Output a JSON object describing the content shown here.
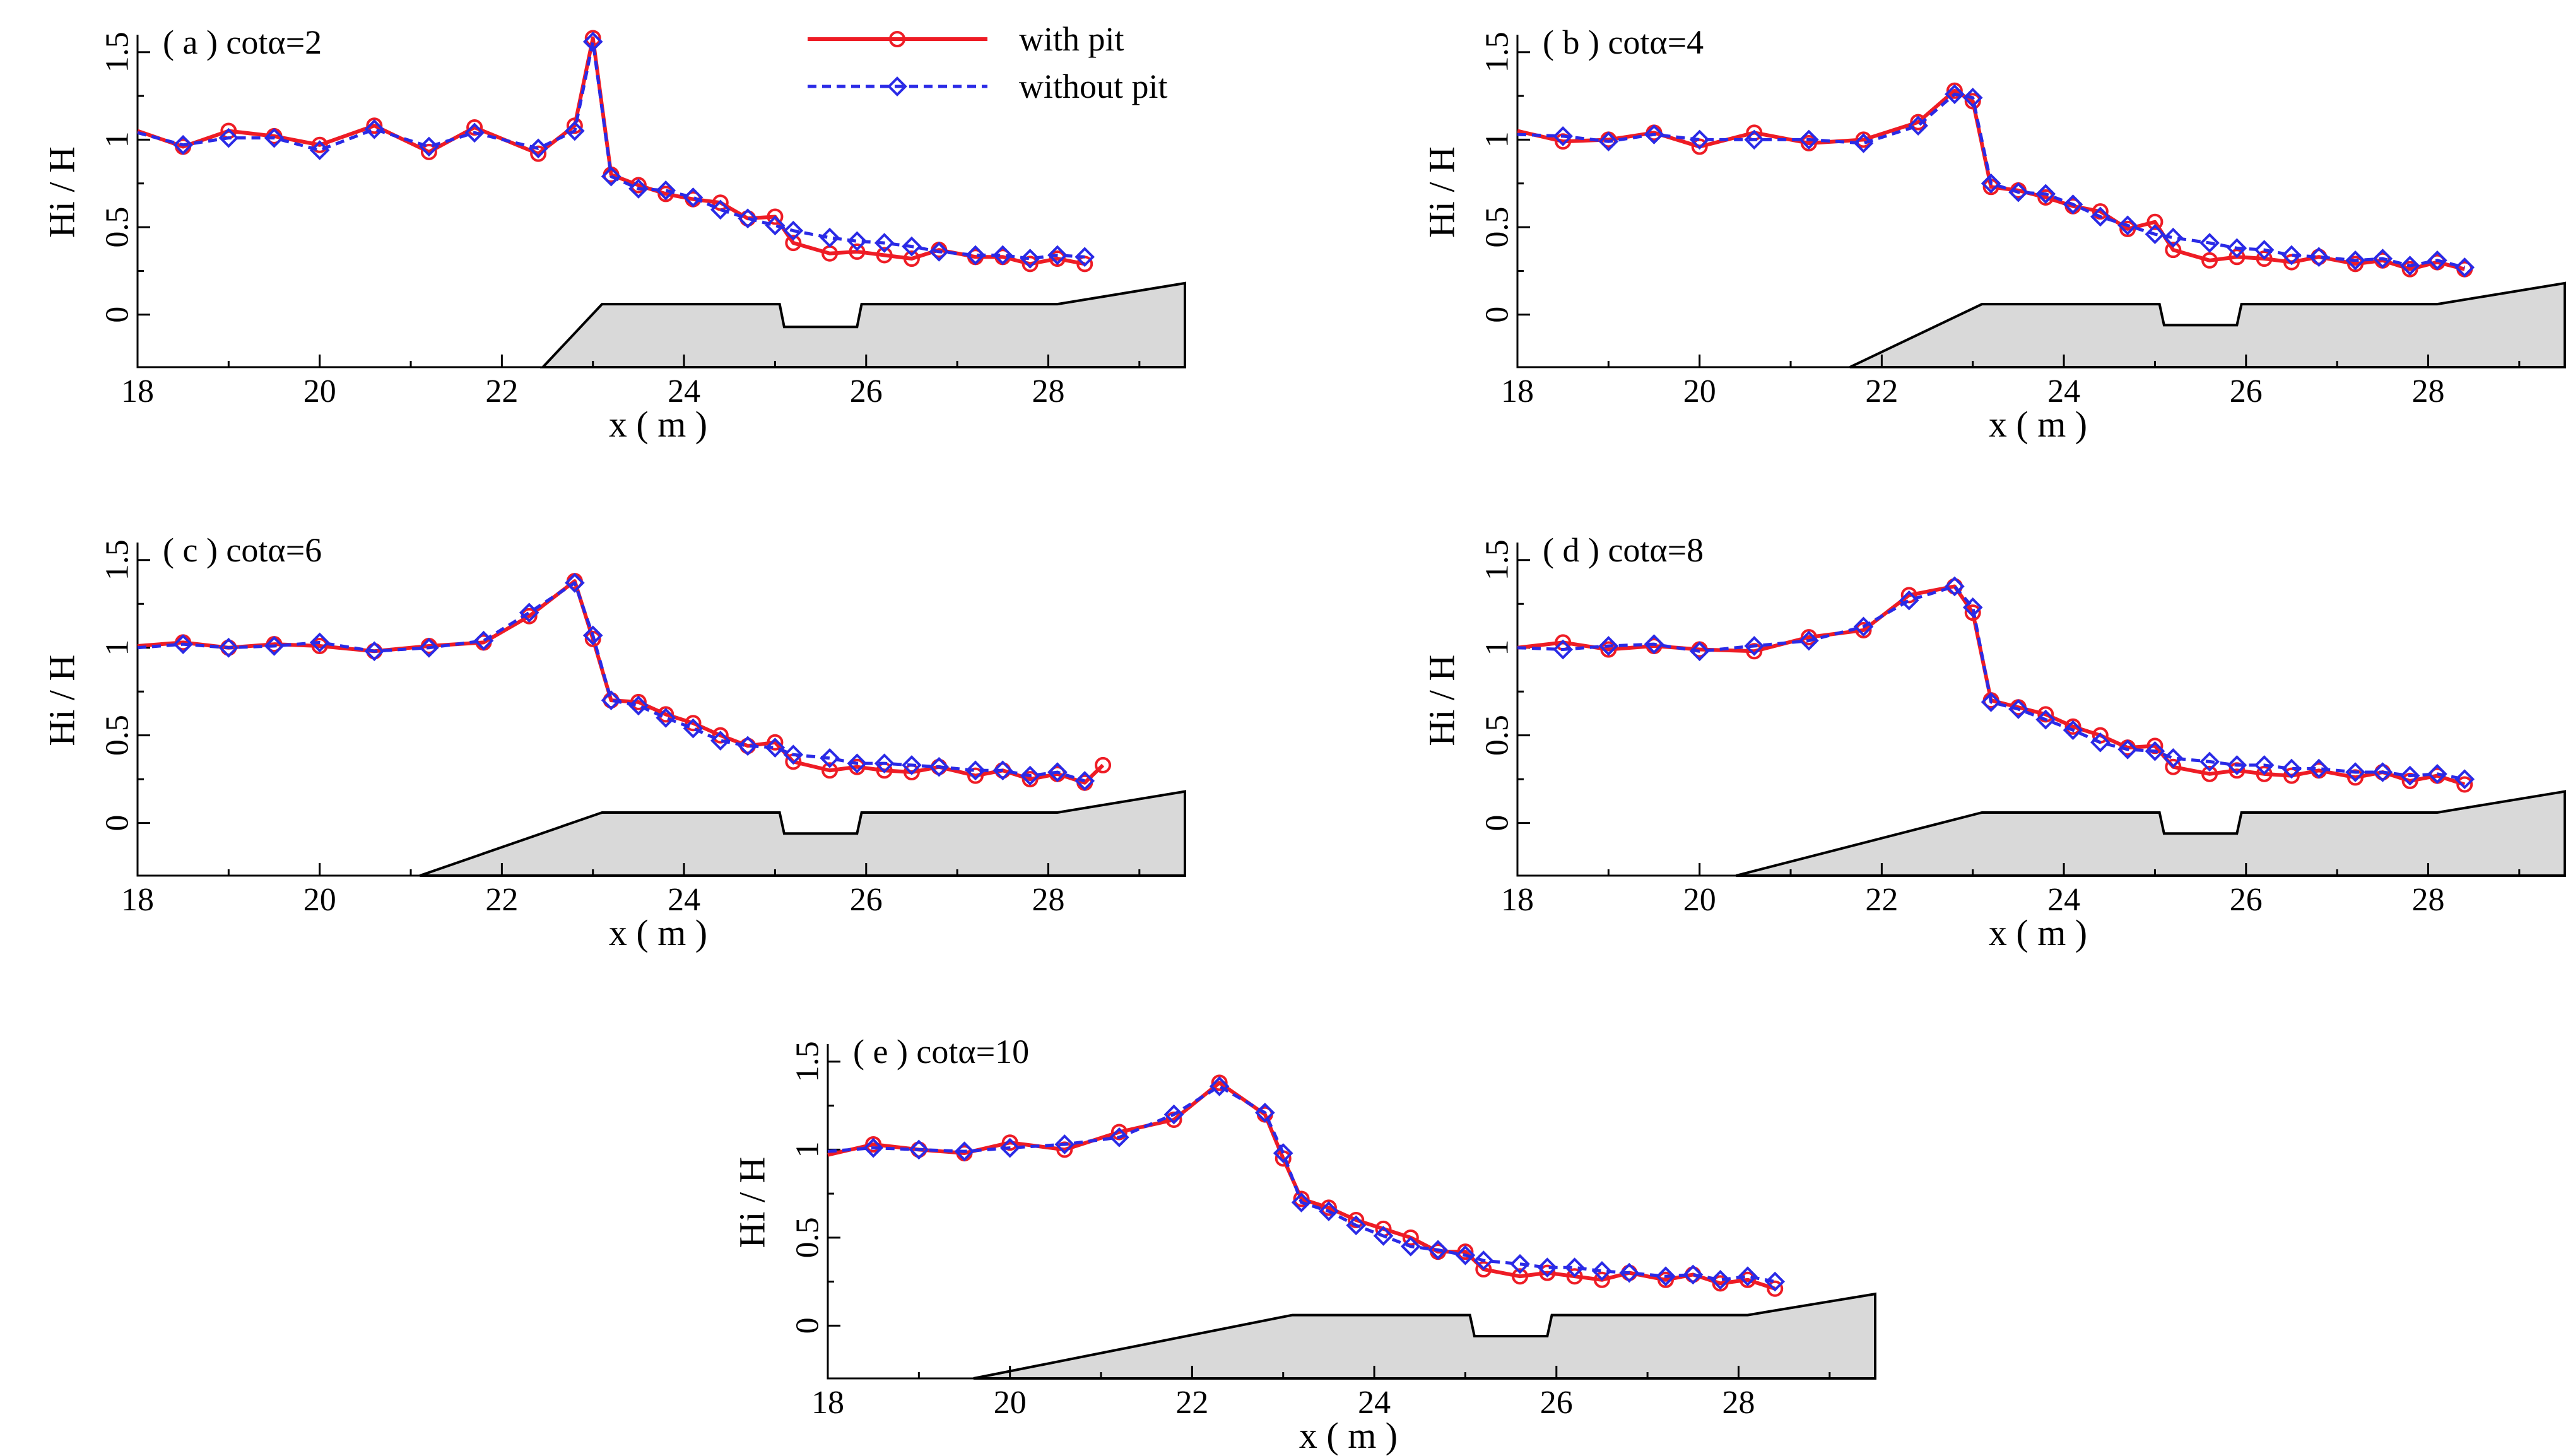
{
  "legend": {
    "with_pit": "with pit",
    "without_pit": "without pit",
    "placement": "top-center of panel (a)"
  },
  "colors": {
    "with_pit": "#ee1c25",
    "without_pit": "#2a2ae6",
    "bed_fill": "#d9d9d9"
  },
  "chart_data": [
    {
      "type": "line",
      "panel": "( a ) cotα=2",
      "xlabel": "x ( m )",
      "ylabel": "Hi / H",
      "xlim": [
        18,
        29.5
      ],
      "ylim": [
        -0.3,
        1.6
      ],
      "xticks": [
        "18",
        "20",
        "22",
        "24",
        "26",
        "28"
      ],
      "yticks": [
        "0",
        "0.5",
        "1",
        "1.5"
      ],
      "series": [
        {
          "name": "with pit",
          "marker": "circle",
          "x": [
            18,
            18.5,
            19,
            19.5,
            20,
            20.6,
            21.2,
            21.7,
            22.4,
            22.8,
            23.0,
            23.2,
            23.5,
            23.8,
            24.1,
            24.4,
            24.7,
            25.0,
            25.2,
            25.6,
            25.9,
            26.2,
            26.5,
            26.8,
            27.2,
            27.5,
            27.8,
            28.1,
            28.4
          ],
          "y": [
            1.05,
            0.96,
            1.05,
            1.02,
            0.97,
            1.08,
            0.93,
            1.07,
            0.92,
            1.08,
            1.58,
            0.8,
            0.74,
            0.69,
            0.66,
            0.64,
            0.55,
            0.56,
            0.41,
            0.35,
            0.36,
            0.34,
            0.32,
            0.37,
            0.33,
            0.33,
            0.29,
            0.32,
            0.29
          ]
        },
        {
          "name": "without pit",
          "marker": "diamond",
          "x": [
            18,
            18.5,
            19,
            19.5,
            20,
            20.6,
            21.2,
            21.7,
            22.4,
            22.8,
            23.0,
            23.2,
            23.5,
            23.8,
            24.1,
            24.4,
            24.7,
            25.0,
            25.2,
            25.6,
            25.9,
            26.2,
            26.5,
            26.8,
            27.2,
            27.5,
            27.8,
            28.1,
            28.4
          ],
          "y": [
            1.04,
            0.97,
            1.01,
            1.01,
            0.94,
            1.06,
            0.96,
            1.04,
            0.95,
            1.05,
            1.56,
            0.79,
            0.72,
            0.71,
            0.67,
            0.6,
            0.55,
            0.51,
            0.48,
            0.44,
            0.42,
            0.41,
            0.39,
            0.36,
            0.34,
            0.34,
            0.32,
            0.34,
            0.33
          ]
        }
      ],
      "bed": {
        "x": [
          22.45,
          23.1,
          25.05,
          25.1,
          25.9,
          25.95,
          28.1,
          29.5
        ],
        "y": [
          -0.3,
          0.06,
          0.06,
          -0.07,
          -0.07,
          0.06,
          0.06,
          0.18
        ]
      }
    },
    {
      "type": "line",
      "panel": "( b ) cotα=4",
      "xlabel": "x ( m )",
      "ylabel": "Hi / H",
      "xlim": [
        18,
        29.5
      ],
      "ylim": [
        -0.3,
        1.6
      ],
      "xticks": [
        "18",
        "20",
        "22",
        "24",
        "26",
        "28"
      ],
      "yticks": [
        "0",
        "0.5",
        "1",
        "1.5"
      ],
      "series": [
        {
          "name": "with pit",
          "marker": "circle",
          "x": [
            18,
            18.5,
            19,
            19.5,
            20,
            20.6,
            21.2,
            21.8,
            22.4,
            22.8,
            23.0,
            23.2,
            23.5,
            23.8,
            24.1,
            24.4,
            24.7,
            25.0,
            25.2,
            25.6,
            25.9,
            26.2,
            26.5,
            26.8,
            27.2,
            27.5,
            27.8,
            28.1,
            28.4
          ],
          "y": [
            1.05,
            0.99,
            1.0,
            1.04,
            0.96,
            1.04,
            0.98,
            1.0,
            1.1,
            1.28,
            1.22,
            0.73,
            0.71,
            0.67,
            0.62,
            0.59,
            0.49,
            0.53,
            0.37,
            0.31,
            0.33,
            0.32,
            0.3,
            0.33,
            0.29,
            0.31,
            0.26,
            0.3,
            0.26
          ]
        },
        {
          "name": "without pit",
          "marker": "diamond",
          "x": [
            18,
            18.5,
            19,
            19.5,
            20,
            20.6,
            21.2,
            21.8,
            22.4,
            22.8,
            23.0,
            23.2,
            23.5,
            23.8,
            24.1,
            24.4,
            24.7,
            25.0,
            25.2,
            25.6,
            25.9,
            26.2,
            26.5,
            26.8,
            27.2,
            27.5,
            27.8,
            28.1,
            28.4
          ],
          "y": [
            1.03,
            1.02,
            0.99,
            1.03,
            1.0,
            1.0,
            1.0,
            0.98,
            1.08,
            1.26,
            1.24,
            0.75,
            0.7,
            0.69,
            0.63,
            0.56,
            0.51,
            0.46,
            0.44,
            0.41,
            0.38,
            0.37,
            0.34,
            0.33,
            0.31,
            0.32,
            0.28,
            0.31,
            0.27
          ]
        }
      ],
      "bed": {
        "x": [
          21.65,
          23.1,
          25.05,
          25.1,
          25.9,
          25.95,
          28.1,
          29.5
        ],
        "y": [
          -0.3,
          0.06,
          0.06,
          -0.06,
          -0.06,
          0.06,
          0.06,
          0.18
        ]
      }
    },
    {
      "type": "line",
      "panel": "( c ) cotα=6",
      "xlabel": "x ( m )",
      "ylabel": "Hi / H",
      "xlim": [
        18,
        29.5
      ],
      "ylim": [
        -0.3,
        1.6
      ],
      "xticks": [
        "18",
        "20",
        "22",
        "24",
        "26",
        "28"
      ],
      "yticks": [
        "0",
        "0.5",
        "1",
        "1.5"
      ],
      "series": [
        {
          "name": "with pit",
          "marker": "circle",
          "x": [
            18,
            18.5,
            19,
            19.5,
            20,
            20.6,
            21.2,
            21.8,
            22.3,
            22.8,
            23.0,
            23.2,
            23.5,
            23.8,
            24.1,
            24.4,
            24.7,
            25.0,
            25.2,
            25.6,
            25.9,
            26.2,
            26.5,
            26.8,
            27.2,
            27.5,
            27.8,
            28.1,
            28.4,
            28.6
          ],
          "y": [
            1.01,
            1.03,
            1.0,
            1.02,
            1.01,
            0.98,
            1.01,
            1.03,
            1.18,
            1.38,
            1.05,
            0.7,
            0.69,
            0.62,
            0.57,
            0.5,
            0.44,
            0.46,
            0.35,
            0.3,
            0.32,
            0.3,
            0.29,
            0.32,
            0.27,
            0.3,
            0.25,
            0.28,
            0.23,
            0.33
          ]
        },
        {
          "name": "without pit",
          "marker": "diamond",
          "x": [
            18,
            18.5,
            19,
            19.5,
            20,
            20.6,
            21.2,
            21.8,
            22.3,
            22.8,
            23.0,
            23.2,
            23.5,
            23.8,
            24.1,
            24.4,
            24.7,
            25.0,
            25.2,
            25.6,
            25.9,
            26.2,
            26.5,
            26.8,
            27.2,
            27.5,
            27.8,
            28.1,
            28.4
          ],
          "y": [
            1.0,
            1.02,
            1.0,
            1.01,
            1.03,
            0.98,
            1.0,
            1.04,
            1.2,
            1.37,
            1.07,
            0.7,
            0.67,
            0.6,
            0.54,
            0.47,
            0.44,
            0.43,
            0.39,
            0.37,
            0.34,
            0.34,
            0.33,
            0.32,
            0.3,
            0.3,
            0.27,
            0.29,
            0.24
          ]
        }
      ],
      "bed": {
        "x": [
          21.1,
          23.1,
          25.05,
          25.1,
          25.9,
          25.95,
          28.1,
          29.5
        ],
        "y": [
          -0.3,
          0.06,
          0.06,
          -0.06,
          -0.06,
          0.06,
          0.06,
          0.18
        ]
      }
    },
    {
      "type": "line",
      "panel": "( d ) cotα=8",
      "xlabel": "x ( m )",
      "ylabel": "Hi / H",
      "xlim": [
        18,
        29.5
      ],
      "ylim": [
        -0.3,
        1.6
      ],
      "xticks": [
        "18",
        "20",
        "22",
        "24",
        "26",
        "28"
      ],
      "yticks": [
        "0",
        "0.5",
        "1",
        "1.5"
      ],
      "series": [
        {
          "name": "with pit",
          "marker": "circle",
          "x": [
            18,
            18.5,
            19,
            19.5,
            20,
            20.6,
            21.2,
            21.8,
            22.3,
            22.8,
            23.0,
            23.2,
            23.5,
            23.8,
            24.1,
            24.4,
            24.7,
            25.0,
            25.2,
            25.6,
            25.9,
            26.2,
            26.5,
            26.8,
            27.2,
            27.5,
            27.8,
            28.1,
            28.4
          ],
          "y": [
            1.0,
            1.03,
            0.99,
            1.01,
            0.99,
            0.98,
            1.06,
            1.1,
            1.3,
            1.35,
            1.2,
            0.7,
            0.66,
            0.62,
            0.55,
            0.5,
            0.43,
            0.44,
            0.32,
            0.28,
            0.3,
            0.28,
            0.27,
            0.3,
            0.26,
            0.29,
            0.24,
            0.27,
            0.22
          ]
        },
        {
          "name": "without pit",
          "marker": "diamond",
          "x": [
            18,
            18.5,
            19,
            19.5,
            20,
            20.6,
            21.2,
            21.8,
            22.3,
            22.8,
            23.0,
            23.2,
            23.5,
            23.8,
            24.1,
            24.4,
            24.7,
            25.0,
            25.2,
            25.6,
            25.9,
            26.2,
            26.5,
            26.8,
            27.2,
            27.5,
            27.8,
            28.1,
            28.4
          ],
          "y": [
            1.0,
            0.99,
            1.01,
            1.02,
            0.98,
            1.01,
            1.04,
            1.12,
            1.27,
            1.35,
            1.23,
            0.69,
            0.65,
            0.59,
            0.53,
            0.46,
            0.42,
            0.41,
            0.37,
            0.35,
            0.33,
            0.33,
            0.31,
            0.31,
            0.29,
            0.29,
            0.27,
            0.28,
            0.25
          ]
        }
      ],
      "bed": {
        "x": [
          20.4,
          23.1,
          25.05,
          25.1,
          25.9,
          25.95,
          28.1,
          29.5
        ],
        "y": [
          -0.3,
          0.06,
          0.06,
          -0.06,
          -0.06,
          0.06,
          0.06,
          0.18
        ]
      }
    },
    {
      "type": "line",
      "panel": "( e ) cotα=10",
      "xlabel": "x ( m )",
      "ylabel": "Hi / H",
      "xlim": [
        18,
        29.5
      ],
      "ylim": [
        -0.3,
        1.6
      ],
      "xticks": [
        "18",
        "20",
        "22",
        "24",
        "26",
        "28"
      ],
      "yticks": [
        "0",
        "0.5",
        "1",
        "1.5"
      ],
      "series": [
        {
          "name": "with pit",
          "marker": "circle",
          "x": [
            18,
            18.5,
            19,
            19.5,
            20,
            20.6,
            21.2,
            21.8,
            22.3,
            22.8,
            23.0,
            23.2,
            23.5,
            23.8,
            24.1,
            24.4,
            24.7,
            25.0,
            25.2,
            25.6,
            25.9,
            26.2,
            26.5,
            26.8,
            27.2,
            27.5,
            27.8,
            28.1,
            28.4
          ],
          "y": [
            0.97,
            1.03,
            1.0,
            0.98,
            1.04,
            1.0,
            1.1,
            1.17,
            1.38,
            1.2,
            0.95,
            0.72,
            0.67,
            0.6,
            0.55,
            0.5,
            0.42,
            0.42,
            0.32,
            0.28,
            0.3,
            0.28,
            0.26,
            0.3,
            0.26,
            0.29,
            0.24,
            0.26,
            0.21
          ]
        },
        {
          "name": "without pit",
          "marker": "diamond",
          "x": [
            18,
            18.5,
            19,
            19.5,
            20,
            20.6,
            21.2,
            21.8,
            22.3,
            22.8,
            23.0,
            23.2,
            23.5,
            23.8,
            24.1,
            24.4,
            24.7,
            25.0,
            25.2,
            25.6,
            25.9,
            26.2,
            26.5,
            26.8,
            27.2,
            27.5,
            27.8,
            28.1,
            28.4
          ],
          "y": [
            0.99,
            1.01,
            1.0,
            0.99,
            1.01,
            1.03,
            1.07,
            1.2,
            1.36,
            1.21,
            0.98,
            0.7,
            0.65,
            0.57,
            0.51,
            0.45,
            0.43,
            0.4,
            0.37,
            0.35,
            0.33,
            0.33,
            0.31,
            0.3,
            0.28,
            0.29,
            0.26,
            0.28,
            0.25
          ]
        }
      ],
      "bed": {
        "x": [
          19.6,
          23.1,
          25.05,
          25.1,
          25.9,
          25.95,
          28.1,
          29.5
        ],
        "y": [
          -0.3,
          0.06,
          0.06,
          -0.06,
          -0.06,
          0.06,
          0.06,
          0.18
        ]
      }
    }
  ]
}
